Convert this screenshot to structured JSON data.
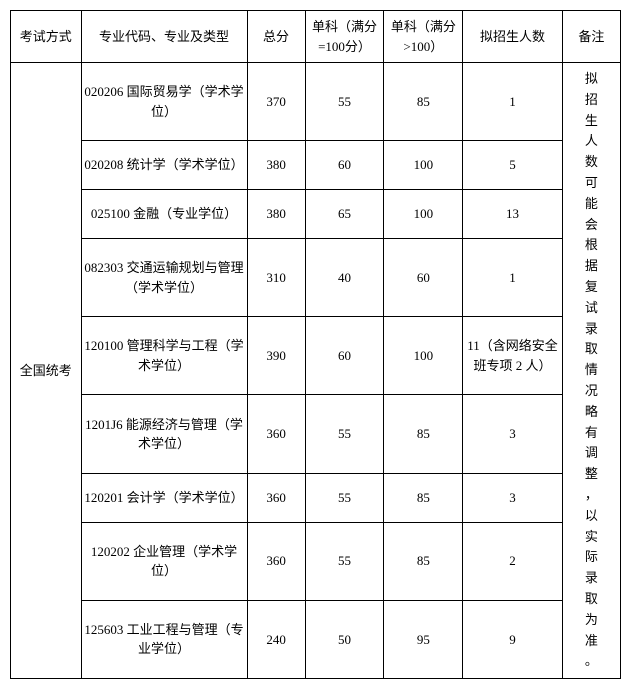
{
  "headers": {
    "exam_method": "考试方式",
    "major": "专业代码、专业及类型",
    "total": "总分",
    "sub1": "单科（满分=100分）",
    "sub2": "单科（满分>100）",
    "plan": "拟招生人数",
    "note": "备注"
  },
  "exam_method_value": "全国统考",
  "note_value": "拟招生人数可能会根据复试录取情况略有调整，以实际录取为准。",
  "rows": [
    {
      "major": "020206 国际贸易学（学术学位）",
      "total": "370",
      "sub1": "55",
      "sub2": "85",
      "plan": "1"
    },
    {
      "major": "020208 统计学（学术学位）",
      "total": "380",
      "sub1": "60",
      "sub2": "100",
      "plan": "5"
    },
    {
      "major": "025100 金融（专业学位）",
      "total": "380",
      "sub1": "65",
      "sub2": "100",
      "plan": "13"
    },
    {
      "major": "082303 交通运输规划与管理（学术学位）",
      "total": "310",
      "sub1": "40",
      "sub2": "60",
      "plan": "1"
    },
    {
      "major": "120100 管理科学与工程（学术学位）",
      "total": "390",
      "sub1": "60",
      "sub2": "100",
      "plan": "11（含网络安全班专项 2 人）"
    },
    {
      "major": "1201J6 能源经济与管理（学术学位）",
      "total": "360",
      "sub1": "55",
      "sub2": "85",
      "plan": "3"
    },
    {
      "major": "120201 会计学（学术学位）",
      "total": "360",
      "sub1": "55",
      "sub2": "85",
      "plan": "3"
    },
    {
      "major": "120202 企业管理（学术学位）",
      "total": "360",
      "sub1": "55",
      "sub2": "85",
      "plan": "2"
    },
    {
      "major": "125603 工业工程与管理（专业学位）",
      "total": "240",
      "sub1": "50",
      "sub2": "95",
      "plan": "9"
    }
  ]
}
